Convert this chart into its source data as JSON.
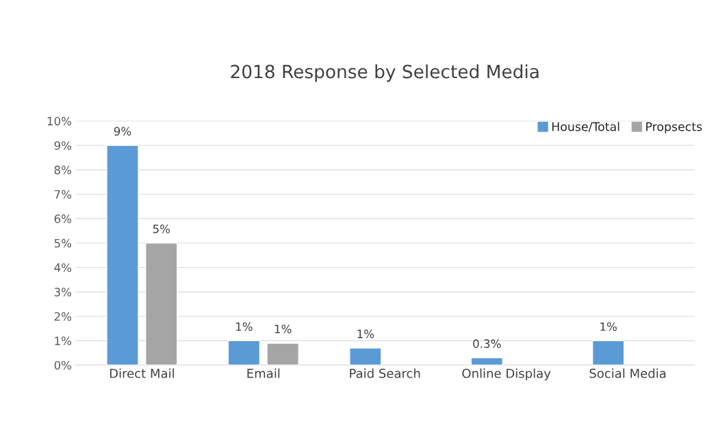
{
  "chart_data": {
    "type": "bar",
    "title": "2018 Response by Selected Media",
    "categories": [
      "Direct Mail",
      "Email",
      "Paid Search",
      "Online Display",
      "Social Media"
    ],
    "series": [
      {
        "name": "House/Total",
        "color": "#5b9bd5",
        "values": [
          9,
          1,
          0.7,
          0.3,
          1
        ],
        "value_labels": [
          "9%",
          "1%",
          "1%",
          "0.3%",
          "1%"
        ]
      },
      {
        "name": "Propsects",
        "color": "#a5a5a5",
        "values": [
          5,
          0.9,
          null,
          null,
          null
        ],
        "value_labels": [
          "5%",
          "1%",
          null,
          null,
          null
        ]
      }
    ],
    "ylim": [
      0,
      10
    ],
    "yticks": [
      {
        "value": 0,
        "label": "0%"
      },
      {
        "value": 1,
        "label": "1%"
      },
      {
        "value": 2,
        "label": "2%"
      },
      {
        "value": 3,
        "label": "3%"
      },
      {
        "value": 4,
        "label": "4%"
      },
      {
        "value": 5,
        "label": "5%"
      },
      {
        "value": 6,
        "label": "6%"
      },
      {
        "value": 7,
        "label": "7%"
      },
      {
        "value": 8,
        "label": "8%"
      },
      {
        "value": 9,
        "label": "9%"
      },
      {
        "value": 10,
        "label": "10%"
      }
    ],
    "grid": "y",
    "legend": "top right"
  }
}
